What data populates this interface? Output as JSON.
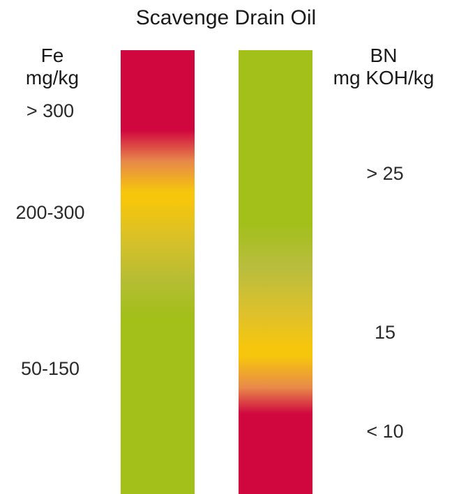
{
  "title": "Scavenge Drain Oil",
  "fe_axis": {
    "label_line1": "Fe",
    "label_line2": "mg/kg",
    "ranges": [
      "> 300",
      "200-300",
      "50-150"
    ]
  },
  "bn_axis": {
    "label_line1": "BN",
    "label_line2": "mg KOH/kg",
    "ranges": [
      "> 25",
      "15",
      "< 10"
    ]
  },
  "colors": {
    "red": "#d0063f",
    "yellow": "#f6c60c",
    "green": "#a2bf1a"
  }
}
